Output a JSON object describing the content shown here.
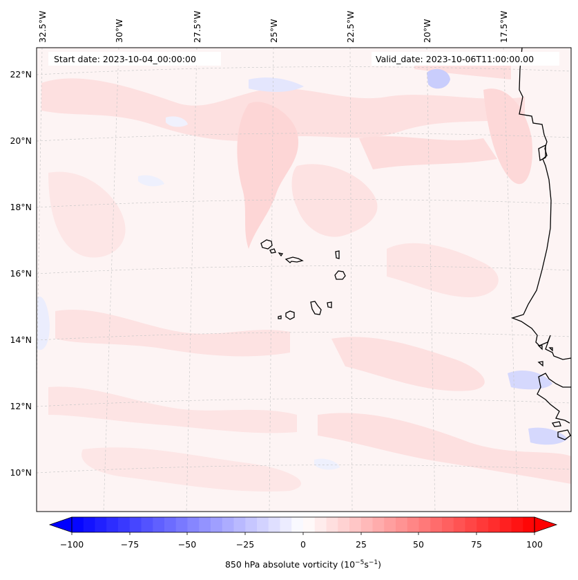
{
  "header": {
    "start_date": "Start date: 2023-10-04_00:00:00",
    "valid_date": "Valid_date: 2023-10-06T11:00:00.00"
  },
  "map": {
    "lon_labels": [
      "32.5°W",
      "30°W",
      "27.5°W",
      "25°W",
      "22.5°W",
      "20°W",
      "17.5°W"
    ],
    "lat_labels": [
      "22°N",
      "20°N",
      "18°N",
      "16°N",
      "14°N",
      "12°N",
      "10°N"
    ],
    "background_color": "#fdf3f3",
    "coastline_color": "#000000",
    "gridline_color": "#c8c8c8"
  },
  "colorbar": {
    "ticks": [
      "−100",
      "−75",
      "−50",
      "−25",
      "0",
      "25",
      "50",
      "75",
      "100"
    ],
    "min": -100,
    "max": 100,
    "colors": {
      "min": "#0000ff",
      "mid": "#ffffff",
      "max": "#ff0000"
    },
    "label_main": "850 hPa absolute vorticity (10",
    "label_exp1": "−5",
    "label_mid": "s",
    "label_exp2": "−1",
    "label_end": ")"
  }
}
